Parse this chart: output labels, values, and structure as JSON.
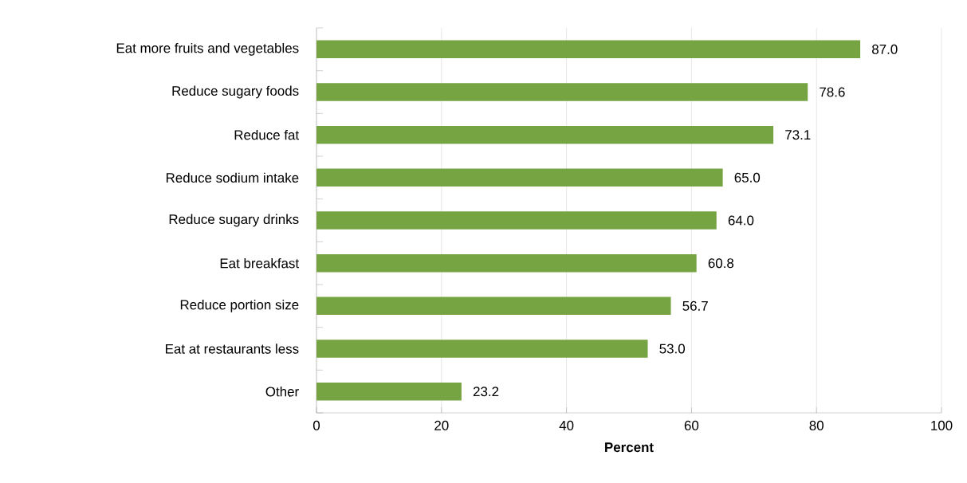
{
  "chart_data": {
    "type": "bar",
    "orientation": "horizontal",
    "categories": [
      "Eat more fruits and vegetables",
      "Reduce sugary foods",
      "Reduce fat",
      "Reduce sodium intake",
      "Reduce sugary drinks",
      "Eat breakfast",
      "Reduce portion size",
      "Eat at restaurants less",
      "Other"
    ],
    "values": [
      87.0,
      78.6,
      73.1,
      65.0,
      64.0,
      60.8,
      56.7,
      53.0,
      23.2
    ],
    "value_labels": [
      "87.0",
      "78.6",
      "73.1",
      "65.0",
      "64.0",
      "60.8",
      "56.7",
      "53.0",
      "23.2"
    ],
    "color": "#76a443",
    "xlim": [
      0,
      100
    ],
    "xticks": [
      0,
      20,
      40,
      60,
      80,
      100
    ],
    "xlabel": "Percent",
    "grid": "x"
  }
}
